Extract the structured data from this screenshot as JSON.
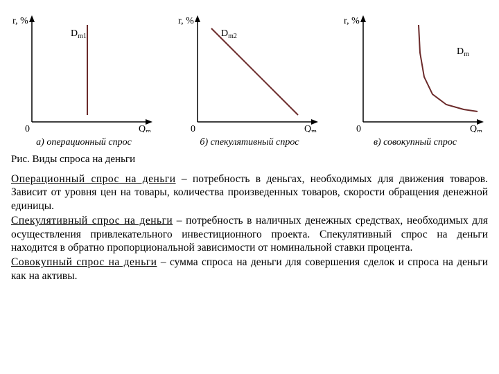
{
  "chart1": {
    "type": "line",
    "y_label": "r, %",
    "x_label": "Qm",
    "origin_label": "0",
    "series_label": "Dm1",
    "caption": "а) операционный спрос",
    "points": [
      [
        110,
        20
      ],
      [
        110,
        150
      ]
    ],
    "axis_color": "#000000",
    "line_color": "#6b2a2a",
    "line_width": 2,
    "label_fontsize": 14
  },
  "chart2": {
    "type": "line",
    "y_label": "r, %",
    "x_label": "Qm",
    "origin_label": "0",
    "series_label": "Dm2",
    "caption": "б) спекулятивный спрос",
    "points": [
      [
        50,
        25
      ],
      [
        175,
        150
      ]
    ],
    "axis_color": "#000000",
    "line_color": "#6b2a2a",
    "line_width": 2,
    "label_fontsize": 14
  },
  "chart3": {
    "type": "line",
    "y_label": "r, %",
    "x_label": "Qm",
    "origin_label": "0",
    "series_label": "Dm",
    "caption": "в) совокупный спрос",
    "points": [
      [
        110,
        20
      ],
      [
        112,
        60
      ],
      [
        118,
        95
      ],
      [
        130,
        120
      ],
      [
        150,
        135
      ],
      [
        175,
        142
      ],
      [
        195,
        145
      ]
    ],
    "axis_color": "#000000",
    "line_color": "#6b2a2a",
    "line_width": 2,
    "label_fontsize": 14
  },
  "figure_title": "Рис. Виды спроса на деньги",
  "para1": {
    "term": "Операционный спрос на деньги",
    "text": " – потребность в деньгах, необходимых для движения товаров. Зависит от уровня цен на товары, количества произведенных товаров, скорости обращения денежной единицы."
  },
  "para2": {
    "term": "Спекулятивный спрос на деньги",
    "text": " – потребность в наличных денежных средствах, необходимых для осуществления привлекательного инвестиционного проекта. Спекулятивный спрос на деньги находится в обратно пропорциональной зависимости от номинальной ставки процента."
  },
  "para3": {
    "term": "Совокупный спрос на деньги",
    "text": " – сумма спроса на деньги для совершения сделок и спроса на деньги как на активы."
  },
  "colors": {
    "text": "#000000",
    "background": "#ffffff"
  }
}
